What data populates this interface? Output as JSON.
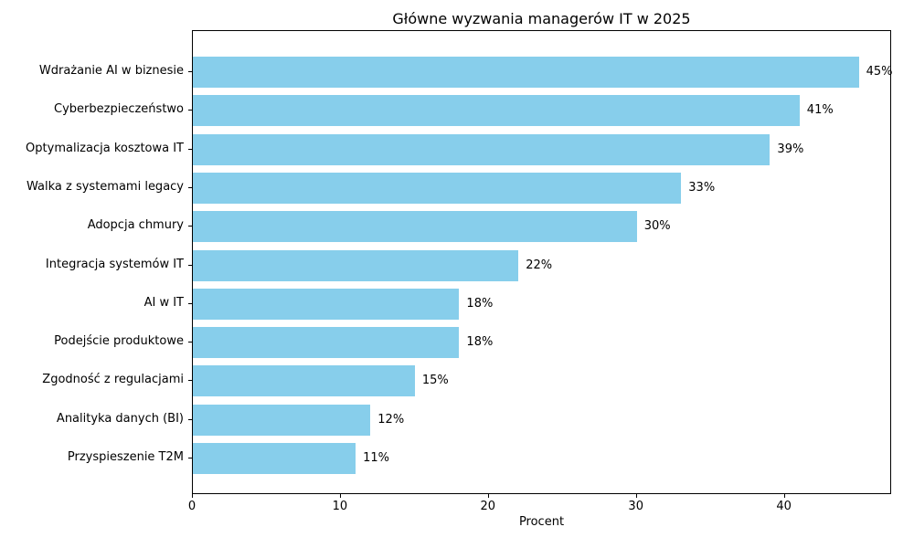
{
  "chart_data": {
    "type": "bar",
    "orientation": "horizontal",
    "title": "Główne wyzwania managerów IT w 2025",
    "xlabel": "Procent",
    "ylabel": "",
    "categories": [
      "Wdrażanie AI w biznesie",
      "Cyberbezpieczeństwo",
      "Optymalizacja kosztowa IT",
      "Walka z systemami legacy",
      "Adopcja chmury",
      "Integracja systemów IT",
      "AI w IT",
      "Podejście produktowe",
      "Zgodność z regulacjami",
      "Analityka danych (BI)",
      "Przyspieszenie T2M"
    ],
    "values": [
      45,
      41,
      39,
      33,
      30,
      22,
      18,
      18,
      15,
      12,
      11
    ],
    "value_labels": [
      "45%",
      "41%",
      "39%",
      "33%",
      "30%",
      "22%",
      "18%",
      "18%",
      "15%",
      "12%",
      "11%"
    ],
    "xlim": [
      0,
      47.25
    ],
    "xticks": [
      0,
      10,
      20,
      30,
      40
    ],
    "bar_color": "#87ceeb",
    "spine_color": "#000000",
    "grid": false,
    "legend": null
  }
}
